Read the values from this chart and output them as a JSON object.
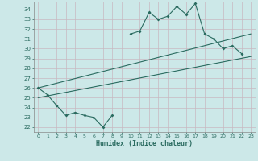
{
  "xlabel": "Humidex (Indice chaleur)",
  "bg_color": "#cce8e8",
  "grid_color": "#c8b8c0",
  "line_color": "#2a6b60",
  "y_curve": [
    26.0,
    25.3,
    24.2,
    23.2,
    23.5,
    23.2,
    23.0,
    22.0,
    23.2,
    null,
    31.5,
    31.8,
    33.7,
    33.0,
    33.3,
    34.3,
    33.5,
    34.6,
    31.5,
    31.0,
    30.0,
    30.3,
    29.5,
    null
  ],
  "x_curve": [
    0,
    1,
    2,
    3,
    4,
    5,
    6,
    7,
    8,
    9,
    10,
    11,
    12,
    13,
    14,
    15,
    16,
    17,
    18,
    19,
    20,
    21,
    22,
    23
  ],
  "line1_x": [
    0,
    23
  ],
  "line1_y": [
    26.0,
    31.5
  ],
  "line2_x": [
    0,
    23
  ],
  "line2_y": [
    25.0,
    29.2
  ],
  "ylim_min": 21.5,
  "ylim_max": 34.8,
  "xlim_min": -0.5,
  "xlim_max": 23.5,
  "yticks": [
    22,
    23,
    24,
    25,
    26,
    27,
    28,
    29,
    30,
    31,
    32,
    33,
    34
  ],
  "xticks": [
    0,
    1,
    2,
    3,
    4,
    5,
    6,
    7,
    8,
    9,
    10,
    11,
    12,
    13,
    14,
    15,
    16,
    17,
    18,
    19,
    20,
    21,
    22,
    23
  ]
}
